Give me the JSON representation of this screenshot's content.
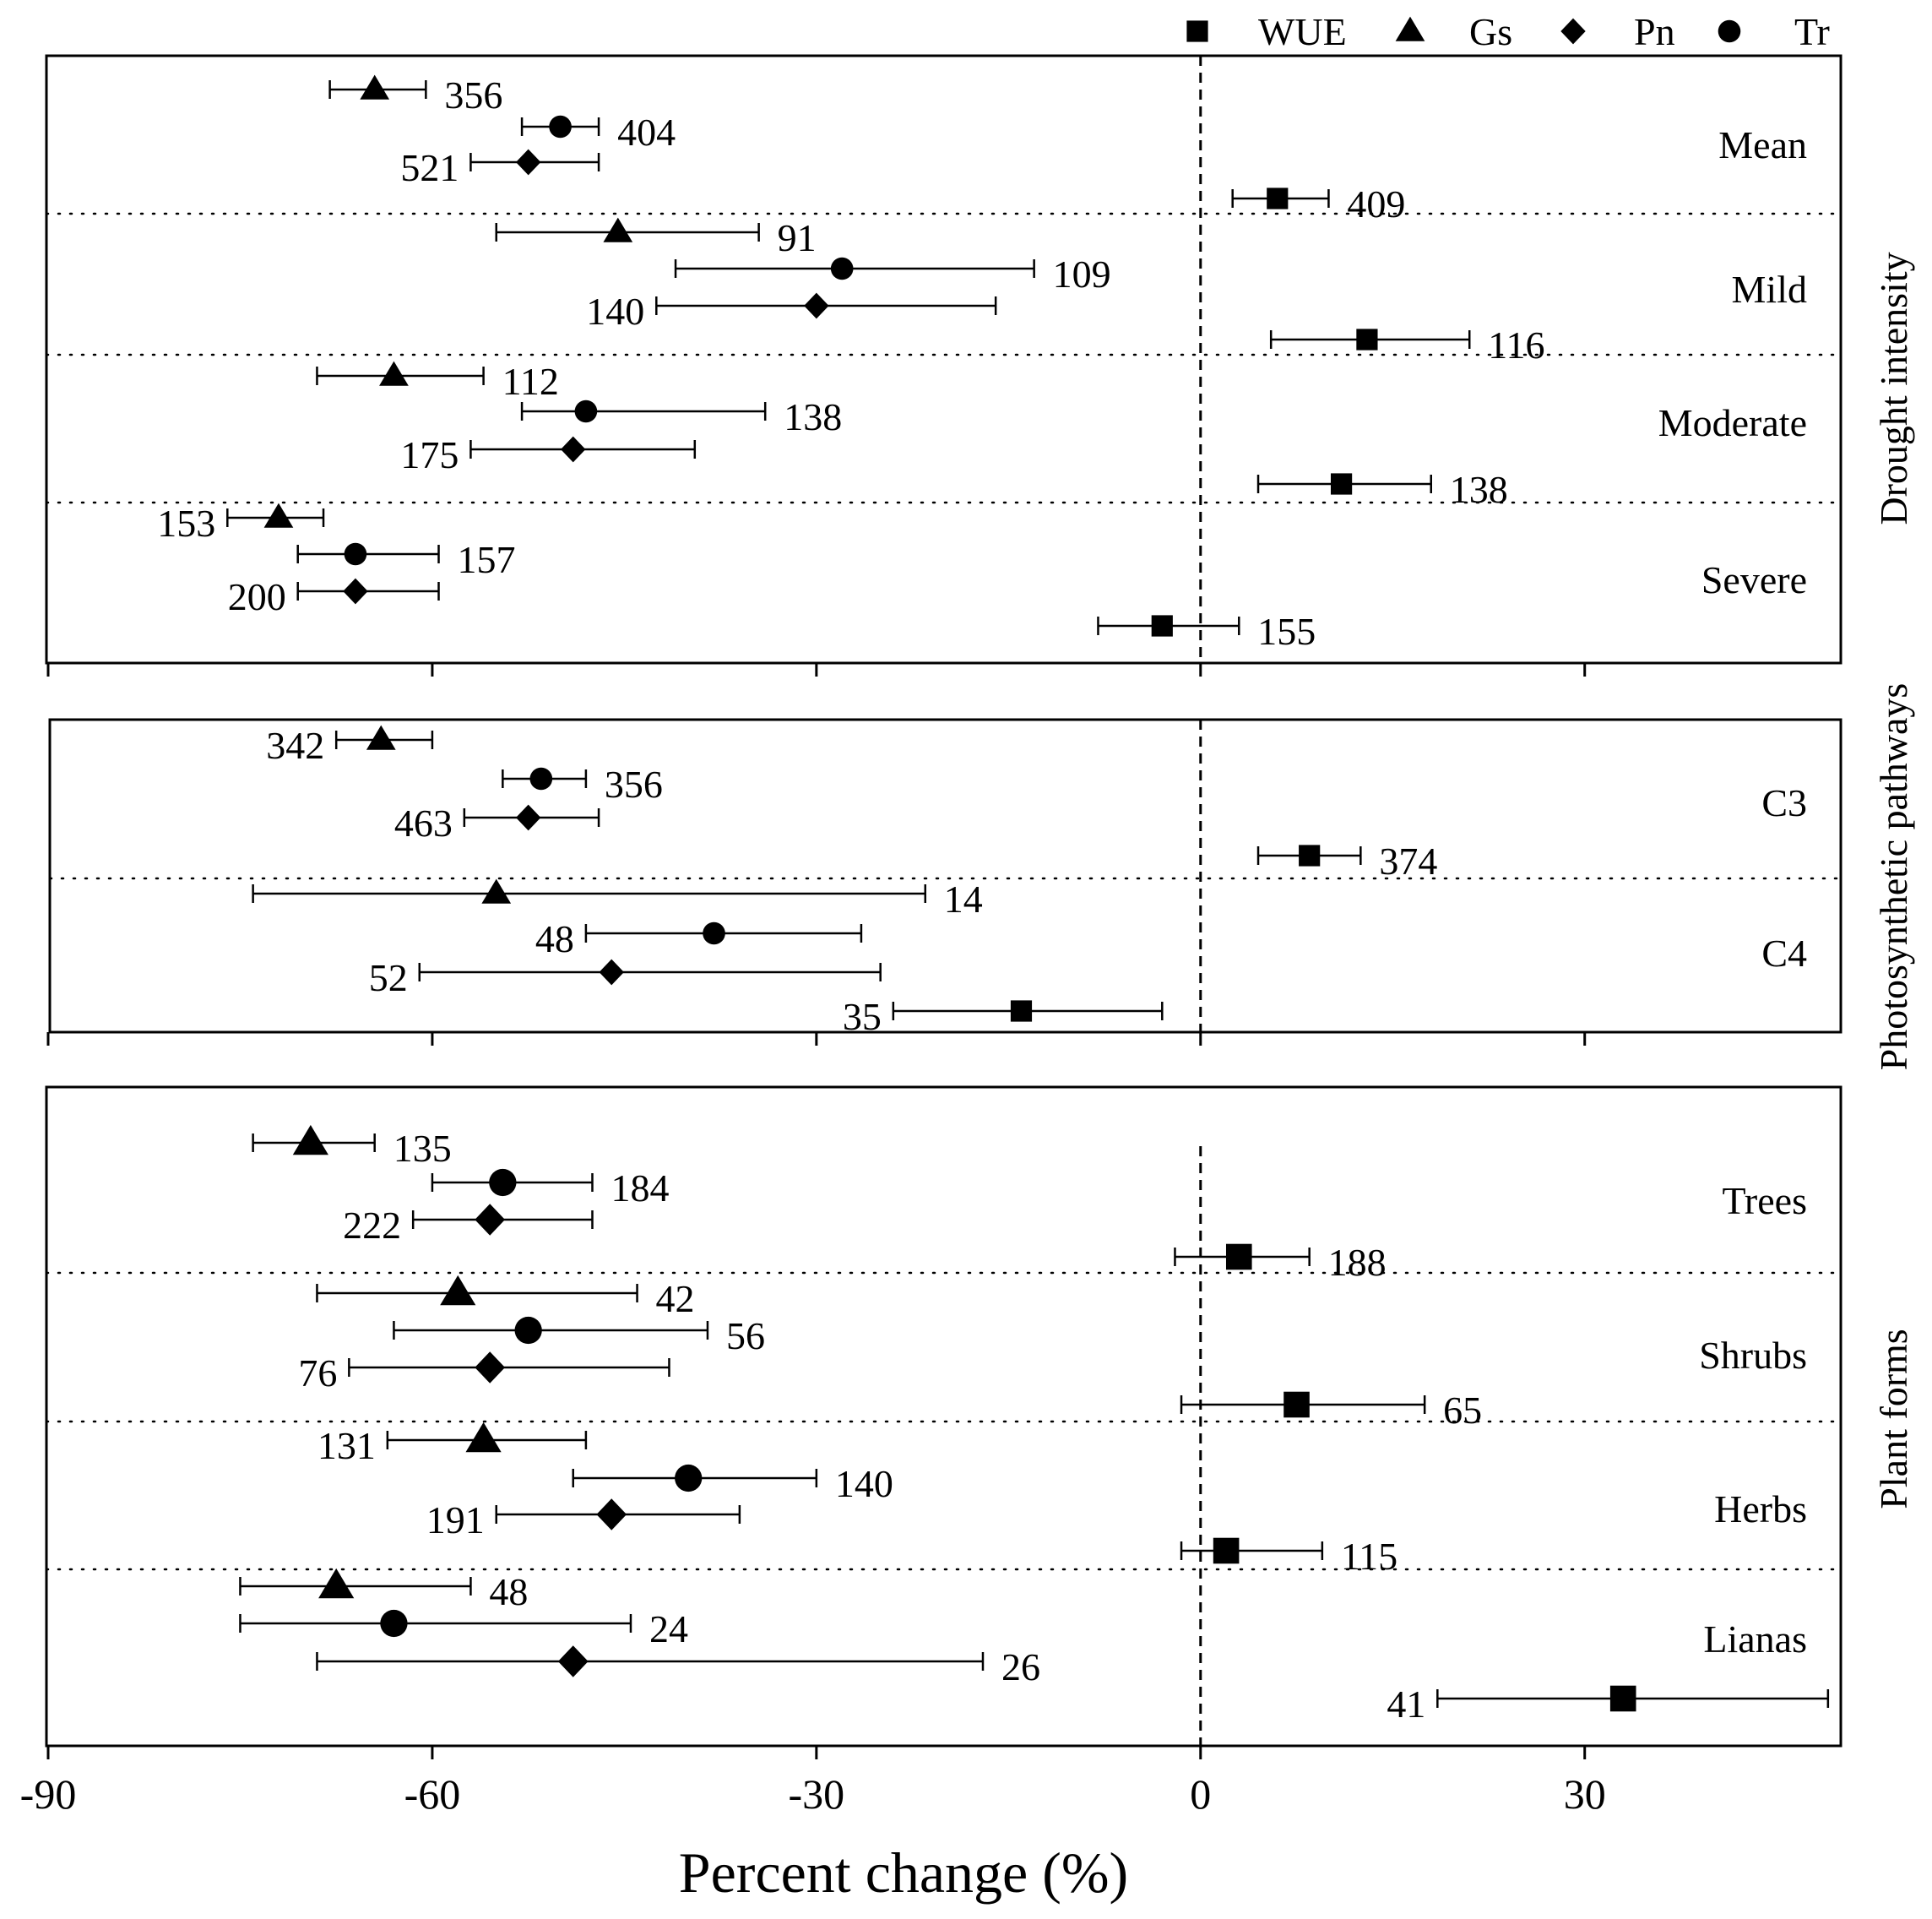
{
  "chart_data": {
    "type": "forest",
    "xlabel": "Percent change (%)",
    "xlim": [
      -90,
      50
    ],
    "xticks": [
      -90,
      -60,
      -30,
      0,
      30
    ],
    "legend": [
      {
        "key": "WUE",
        "label": "WUE",
        "marker": "square"
      },
      {
        "key": "Gs",
        "label": "Gs",
        "marker": "triangle"
      },
      {
        "key": "Pn",
        "label": "Pn",
        "marker": "diamond"
      },
      {
        "key": "Tr",
        "label": "Tr",
        "marker": "circle"
      }
    ],
    "panels": [
      {
        "label": "Drought intensity",
        "groups": [
          {
            "label": "Mean",
            "rows": [
              {
                "var": "Gs",
                "mean": -64.5,
                "lo": -68,
                "hi": -60.5,
                "n": "356",
                "side": "right"
              },
              {
                "var": "Tr",
                "mean": -50,
                "lo": -53,
                "hi": -47,
                "n": "404",
                "side": "right"
              },
              {
                "var": "Pn",
                "mean": -52.5,
                "lo": -57,
                "hi": -47,
                "n": "521",
                "side": "left"
              },
              {
                "var": "WUE",
                "mean": 6,
                "lo": 2.5,
                "hi": 10,
                "n": "409",
                "side": "right"
              }
            ]
          },
          {
            "label": "Mild",
            "rows": [
              {
                "var": "Gs",
                "mean": -45.5,
                "lo": -55,
                "hi": -34.5,
                "n": "91",
                "side": "right"
              },
              {
                "var": "Tr",
                "mean": -28,
                "lo": -41,
                "hi": -13,
                "n": "109",
                "side": "right"
              },
              {
                "var": "Pn",
                "mean": -30,
                "lo": -42.5,
                "hi": -16,
                "n": "140",
                "side": "left"
              },
              {
                "var": "WUE",
                "mean": 13,
                "lo": 5.5,
                "hi": 21,
                "n": "116",
                "side": "right"
              }
            ]
          },
          {
            "label": "Moderate",
            "rows": [
              {
                "var": "Gs",
                "mean": -63,
                "lo": -69,
                "hi": -56,
                "n": "112",
                "side": "right"
              },
              {
                "var": "Tr",
                "mean": -48,
                "lo": -53,
                "hi": -34,
                "n": "138",
                "side": "right"
              },
              {
                "var": "Pn",
                "mean": -49,
                "lo": -57,
                "hi": -39.5,
                "n": "175",
                "side": "left"
              },
              {
                "var": "WUE",
                "mean": 11,
                "lo": 4.5,
                "hi": 18,
                "n": "138",
                "side": "right"
              }
            ]
          },
          {
            "label": "Severe",
            "rows": [
              {
                "var": "Gs",
                "mean": -72,
                "lo": -76,
                "hi": -68.5,
                "n": "153",
                "side": "left"
              },
              {
                "var": "Tr",
                "mean": -66,
                "lo": -70.5,
                "hi": -59.5,
                "n": "157",
                "side": "right"
              },
              {
                "var": "Pn",
                "mean": -66,
                "lo": -70.5,
                "hi": -59.5,
                "n": "200",
                "side": "left"
              },
              {
                "var": "WUE",
                "mean": -3,
                "lo": -8,
                "hi": 3,
                "n": "155",
                "side": "right"
              }
            ]
          }
        ]
      },
      {
        "label": "Photosynthetic pathways",
        "groups": [
          {
            "label": "C3",
            "rows": [
              {
                "var": "Gs",
                "mean": -64,
                "lo": -67.5,
                "hi": -60,
                "n": "342",
                "side": "left"
              },
              {
                "var": "Tr",
                "mean": -51.5,
                "lo": -54.5,
                "hi": -48,
                "n": "356",
                "side": "right"
              },
              {
                "var": "Pn",
                "mean": -52.5,
                "lo": -57.5,
                "hi": -47,
                "n": "463",
                "side": "left"
              },
              {
                "var": "WUE",
                "mean": 8.5,
                "lo": 4.5,
                "hi": 12.5,
                "n": "374",
                "side": "right"
              }
            ]
          },
          {
            "label": "C4",
            "rows": [
              {
                "var": "Gs",
                "mean": -55,
                "lo": -74,
                "hi": -21.5,
                "n": "14",
                "side": "right"
              },
              {
                "var": "Tr",
                "mean": -38,
                "lo": -48,
                "hi": -26.5,
                "n": "48",
                "side": "left"
              },
              {
                "var": "Pn",
                "mean": -46,
                "lo": -61,
                "hi": -25,
                "n": "52",
                "side": "left"
              },
              {
                "var": "WUE",
                "mean": -14,
                "lo": -24,
                "hi": -3,
                "n": "35",
                "side": "left"
              }
            ]
          }
        ]
      },
      {
        "label": "Plant forms",
        "groups": [
          {
            "label": "Trees",
            "rows": [
              {
                "var": "Gs",
                "mean": -69.5,
                "lo": -74,
                "hi": -64.5,
                "n": "135",
                "side": "right"
              },
              {
                "var": "Tr",
                "mean": -54.5,
                "lo": -60,
                "hi": -47.5,
                "n": "184",
                "side": "right"
              },
              {
                "var": "Pn",
                "mean": -55.5,
                "lo": -61.5,
                "hi": -47.5,
                "n": "222",
                "side": "left"
              },
              {
                "var": "WUE",
                "mean": 3,
                "lo": -2,
                "hi": 8.5,
                "n": "188",
                "side": "right"
              }
            ]
          },
          {
            "label": "Shrubs",
            "rows": [
              {
                "var": "Gs",
                "mean": -58,
                "lo": -69,
                "hi": -44,
                "n": "42",
                "side": "right"
              },
              {
                "var": "Tr",
                "mean": -52.5,
                "lo": -63,
                "hi": -38.5,
                "n": "56",
                "side": "right"
              },
              {
                "var": "Pn",
                "mean": -55.5,
                "lo": -66.5,
                "hi": -41.5,
                "n": "76",
                "side": "left"
              },
              {
                "var": "WUE",
                "mean": 7.5,
                "lo": -1.5,
                "hi": 17.5,
                "n": "65",
                "side": "right"
              }
            ]
          },
          {
            "label": "Herbs",
            "rows": [
              {
                "var": "Gs",
                "mean": -56,
                "lo": -63.5,
                "hi": -48,
                "n": "131",
                "side": "left"
              },
              {
                "var": "Tr",
                "mean": -40,
                "lo": -49,
                "hi": -30,
                "n": "140",
                "side": "right"
              },
              {
                "var": "Pn",
                "mean": -46,
                "lo": -55,
                "hi": -36,
                "n": "191",
                "side": "left"
              },
              {
                "var": "WUE",
                "mean": 2,
                "lo": -1.5,
                "hi": 9.5,
                "n": "115",
                "side": "right"
              }
            ]
          },
          {
            "label": "Lianas",
            "rows": [
              {
                "var": "Gs",
                "mean": -67.5,
                "lo": -75,
                "hi": -57,
                "n": "48",
                "side": "right"
              },
              {
                "var": "Tr",
                "mean": -63,
                "lo": -75,
                "hi": -44.5,
                "n": "24",
                "side": "right"
              },
              {
                "var": "Pn",
                "mean": -49,
                "lo": -69,
                "hi": -17,
                "n": "26",
                "side": "right"
              },
              {
                "var": "WUE",
                "mean": 33,
                "lo": 18.5,
                "hi": 49,
                "n": "41",
                "side": "left"
              }
            ]
          }
        ]
      }
    ]
  }
}
